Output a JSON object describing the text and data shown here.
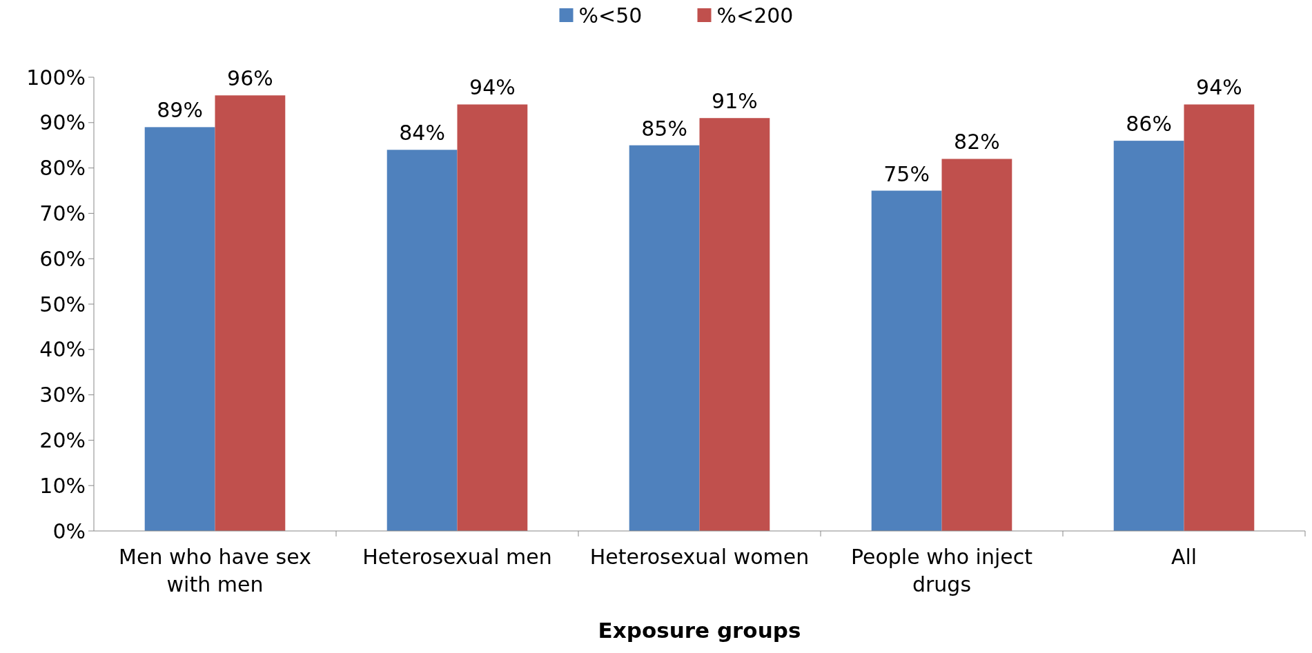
{
  "chart_data": {
    "type": "bar",
    "xlabel": "Exposure groups",
    "categories": [
      "Men who have sex with men",
      "Heterosexual men",
      "Heterosexual women",
      "People who inject drugs",
      "All"
    ],
    "series": [
      {
        "name": "%<50",
        "color": "#4f81bd",
        "values": [
          89,
          84,
          85,
          75,
          86
        ],
        "value_labels": [
          "89%",
          "84%",
          "85%",
          "75%",
          "86%"
        ]
      },
      {
        "name": "%<200",
        "color": "#c0504d",
        "values": [
          96,
          94,
          91,
          82,
          94
        ],
        "value_labels": [
          "96%",
          "94%",
          "91%",
          "82%",
          "94%"
        ]
      }
    ],
    "ylim": [
      0,
      100
    ],
    "yticks": [
      {
        "value": 0,
        "label": "0%"
      },
      {
        "value": 10,
        "label": "10%"
      },
      {
        "value": 20,
        "label": "20%"
      },
      {
        "value": 30,
        "label": "30%"
      },
      {
        "value": 40,
        "label": "40%"
      },
      {
        "value": 50,
        "label": "50%"
      },
      {
        "value": 60,
        "label": "60%"
      },
      {
        "value": 70,
        "label": "70%"
      },
      {
        "value": 80,
        "label": "80%"
      },
      {
        "value": 90,
        "label": "90%"
      },
      {
        "value": 100,
        "label": "100%"
      }
    ],
    "legend": "top"
  }
}
